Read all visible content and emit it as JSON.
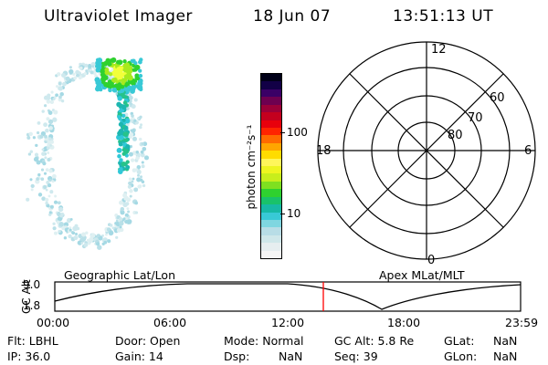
{
  "header": {
    "instrument": "Ultraviolet Imager",
    "date": "18 Jun 07",
    "time": "13:51:13 UT"
  },
  "colorbar": {
    "label": "photon cm⁻²s⁻¹",
    "ticks": [
      "100",
      "10"
    ],
    "colors": [
      "#f5f5f5",
      "#e6eef0",
      "#cfe7ea",
      "#b8dde6",
      "#7fd6e0",
      "#38c9d6",
      "#17b9a5",
      "#19c26a",
      "#2fd12f",
      "#7fe020",
      "#c8ee1c",
      "#eef520",
      "#fff65a",
      "#ffdc00",
      "#ffa500",
      "#ff6a00",
      "#ff2400",
      "#e8000c",
      "#c4001e",
      "#9c0038",
      "#6e0050",
      "#3a0066",
      "#120046",
      "#000018"
    ]
  },
  "polar": {
    "hour_labels": [
      "12",
      "18",
      "6",
      "0"
    ],
    "lat_labels": [
      "60",
      "70",
      "80"
    ]
  },
  "timeline": {
    "left_label": "Geographic Lat/Lon",
    "right_label": "Apex MLat/MLT",
    "axis_label": "GC Alt",
    "y_ticks": [
      "9.0",
      "1.8"
    ],
    "x_ticks": [
      "00:00",
      "06:00",
      "12:00",
      "18:00",
      "23:59"
    ],
    "marker_time": "13:51"
  },
  "info": {
    "filter": "Flt: LBHL",
    "ip": "IP: 36.0",
    "door": "Door: Open",
    "gain": "Gain: 14",
    "mode": "Mode: Normal",
    "dsp_key": "Dsp:",
    "dsp_val": "NaN",
    "gcalt": "GC Alt: 5.8 Re",
    "seq": "Seq: 39",
    "glat_key": "GLat:",
    "glat_val": "NaN",
    "glon_key": "GLon:",
    "glon_val": "NaN"
  }
}
